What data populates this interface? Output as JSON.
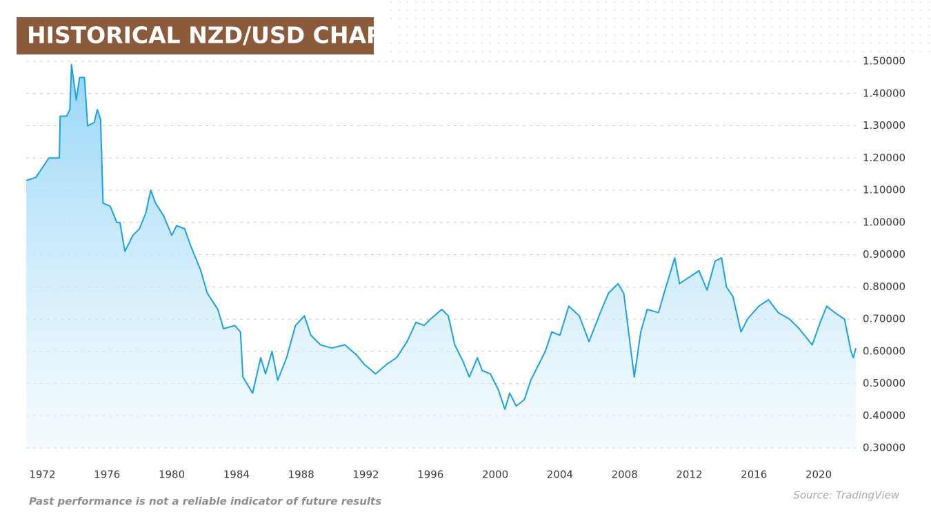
{
  "chart_data": {
    "type": "area",
    "title": "HISTORICAL NZD/USD CHART",
    "note": "Past performance is not a reliable indicator of future results",
    "source": "Source: TradingView",
    "x": [
      1971.0,
      1971.6,
      1972.0,
      1972.4,
      1972.8,
      1973.05,
      1973.1,
      1973.5,
      1973.7,
      1973.8,
      1974.1,
      1974.3,
      1974.6,
      1974.8,
      1975.2,
      1975.4,
      1975.6,
      1975.75,
      1976.2,
      1976.6,
      1976.8,
      1977.1,
      1977.6,
      1978.0,
      1978.4,
      1978.7,
      1979.0,
      1979.5,
      1980.0,
      1980.3,
      1980.8,
      1981.15,
      1981.8,
      1982.2,
      1982.85,
      1983.2,
      1983.9,
      1984.25,
      1984.4,
      1985.0,
      1985.5,
      1985.8,
      1986.2,
      1986.55,
      1987.1,
      1987.65,
      1988.2,
      1988.6,
      1989.2,
      1989.9,
      1990.7,
      1991.4,
      1991.9,
      1992.6,
      1993.3,
      1993.9,
      1994.55,
      1995.1,
      1995.6,
      1996.0,
      1996.7,
      1997.1,
      1997.5,
      1998.0,
      1998.4,
      1998.9,
      1999.2,
      1999.7,
      2000.2,
      2000.6,
      2000.9,
      2001.3,
      2001.8,
      2002.2,
      2002.6,
      2003.1,
      2003.5,
      2004.0,
      2004.55,
      2005.2,
      2005.8,
      2006.5,
      2007.0,
      2007.6,
      2007.95,
      2008.4,
      2008.6,
      2009.0,
      2009.4,
      2010.1,
      2010.5,
      2011.1,
      2011.4,
      2012.0,
      2012.6,
      2013.1,
      2013.6,
      2014.0,
      2014.3,
      2014.7,
      2015.2,
      2015.6,
      2016.3,
      2016.9,
      2017.5,
      2018.2,
      2018.8,
      2019.6,
      2020.1,
      2020.5,
      2021.0,
      2021.6,
      2022.0,
      2022.15,
      2022.3
    ],
    "series": [
      {
        "color": "#1aa0e8",
        "values": [
          1.13,
          1.14,
          1.17,
          1.2,
          1.2,
          1.2,
          1.33,
          1.33,
          1.35,
          1.49,
          1.38,
          1.45,
          1.45,
          1.3,
          1.31,
          1.35,
          1.32,
          1.06,
          1.05,
          1.0,
          1.0,
          0.91,
          0.96,
          0.98,
          1.03,
          1.1,
          1.06,
          1.02,
          0.96,
          0.99,
          0.98,
          0.93,
          0.85,
          0.78,
          0.73,
          0.67,
          0.68,
          0.66,
          0.52,
          0.47,
          0.58,
          0.53,
          0.6,
          0.51,
          0.58,
          0.68,
          0.71,
          0.65,
          0.62,
          0.61,
          0.62,
          0.59,
          0.56,
          0.53,
          0.56,
          0.58,
          0.63,
          0.69,
          0.68,
          0.7,
          0.73,
          0.71,
          0.62,
          0.57,
          0.52,
          0.58,
          0.54,
          0.53,
          0.48,
          0.42,
          0.47,
          0.43,
          0.45,
          0.51,
          0.55,
          0.6,
          0.66,
          0.65,
          0.74,
          0.71,
          0.63,
          0.72,
          0.78,
          0.81,
          0.78,
          0.6,
          0.52,
          0.66,
          0.73,
          0.72,
          0.79,
          0.89,
          0.81,
          0.83,
          0.85,
          0.79,
          0.88,
          0.89,
          0.8,
          0.77,
          0.66,
          0.7,
          0.74,
          0.76,
          0.72,
          0.7,
          0.67,
          0.62,
          0.69,
          0.74,
          0.72,
          0.7,
          0.6,
          0.58,
          0.61
        ]
      }
    ],
    "xlim": [
      1971.0,
      2022.3
    ],
    "xticks": [
      1972,
      1976,
      1980,
      1984,
      1988,
      1992,
      1996,
      2000,
      2004,
      2008,
      2012,
      2016,
      2020
    ],
    "ylim": [
      0.3,
      1.5
    ],
    "yticks": [
      {
        "value": 0.3,
        "label": "0.30000"
      },
      {
        "value": 0.4,
        "label": "0.40000"
      },
      {
        "value": 0.5,
        "label": "0.50000"
      },
      {
        "value": 0.6,
        "label": "0.60000"
      },
      {
        "value": 0.7,
        "label": "0.70000"
      },
      {
        "value": 0.8,
        "label": "0.80000"
      },
      {
        "value": 0.9,
        "label": "0.90000"
      },
      {
        "value": 1.0,
        "label": "1.00000"
      },
      {
        "value": 1.1,
        "label": "1.10000"
      },
      {
        "value": 1.2,
        "label": "1.20000"
      },
      {
        "value": 1.3,
        "label": "1.30000"
      },
      {
        "value": 1.4,
        "label": "1.40000"
      },
      {
        "value": 1.5,
        "label": "1.50000"
      }
    ],
    "grid": true
  }
}
